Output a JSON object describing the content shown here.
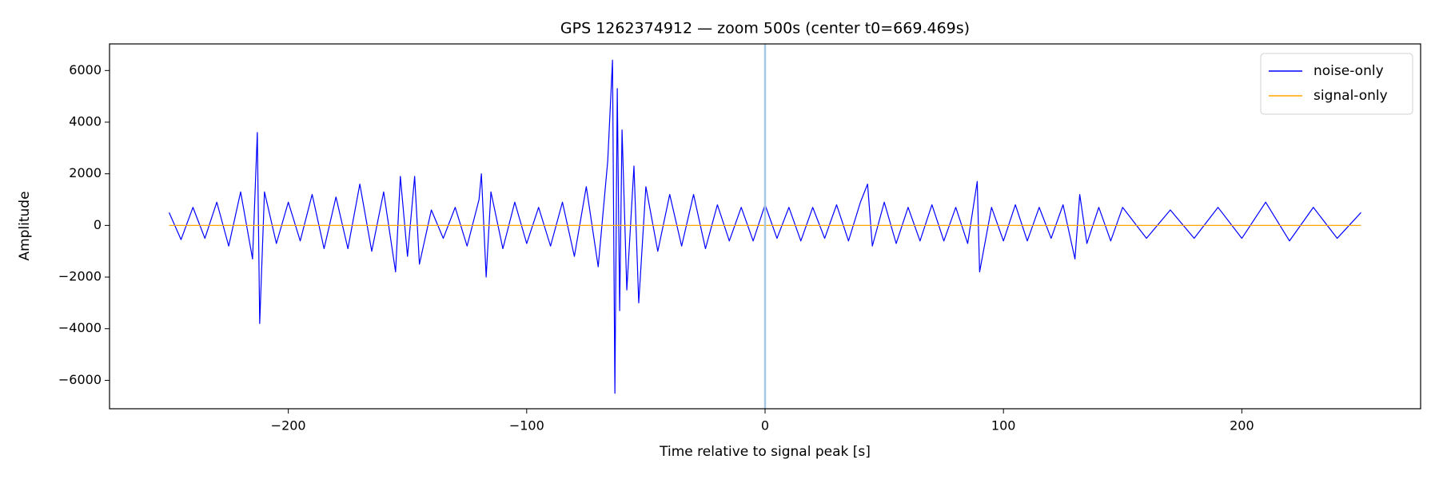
{
  "chart_data": {
    "type": "line",
    "title": "GPS 1262374912 — zoom 500s (center t0=669.469s)",
    "x_label": "Time relative to signal peak [s]",
    "y_label": "Amplitude",
    "xlim": [
      -275,
      275
    ],
    "ylim": [
      -7100,
      7030
    ],
    "xticks": [
      {
        "value": -200,
        "label": "−200"
      },
      {
        "value": -100,
        "label": "−100"
      },
      0,
      100,
      200
    ],
    "yticks": [
      {
        "value": -6000,
        "label": "−6000"
      },
      {
        "value": -4000,
        "label": "−4000"
      },
      {
        "value": -2000,
        "label": "−2000"
      },
      0,
      2000,
      4000,
      6000
    ],
    "vline_x": 0,
    "vline_color": "#a6c8e4",
    "legend": "upper right",
    "series": [
      {
        "name": "noise-only",
        "color": "#0000ff",
        "x": [
          -250,
          -245,
          -240,
          -235,
          -230,
          -225,
          -220,
          -215,
          -213,
          -212,
          -210,
          -205,
          -200,
          -195,
          -190,
          -185,
          -180,
          -175,
          -170,
          -165,
          -160,
          -155,
          -153,
          -150,
          -147,
          -145,
          -140,
          -135,
          -130,
          -125,
          -120,
          -119,
          -117,
          -115,
          -110,
          -105,
          -100,
          -95,
          -90,
          -85,
          -80,
          -75,
          -70,
          -66,
          -64,
          -63,
          -62,
          -61,
          -60,
          -58,
          -55,
          -53,
          -50,
          -45,
          -40,
          -35,
          -30,
          -25,
          -20,
          -15,
          -10,
          -5,
          0,
          5,
          10,
          15,
          20,
          25,
          30,
          35,
          40,
          43,
          45,
          50,
          55,
          60,
          65,
          70,
          75,
          80,
          85,
          89,
          90,
          95,
          100,
          105,
          110,
          115,
          120,
          125,
          130,
          132,
          135,
          140,
          145,
          150,
          160,
          170,
          180,
          190,
          200,
          210,
          220,
          230,
          240,
          250
        ],
        "values": [
          500,
          -550,
          700,
          -500,
          900,
          -800,
          1300,
          -1300,
          3600,
          -3800,
          1300,
          -700,
          900,
          -600,
          1200,
          -900,
          1100,
          -900,
          1600,
          -1000,
          1300,
          -1800,
          1900,
          -1200,
          1900,
          -1500,
          600,
          -500,
          700,
          -800,
          1000,
          2000,
          -2000,
          1300,
          -900,
          900,
          -700,
          700,
          -800,
          900,
          -1200,
          1500,
          -1600,
          2500,
          6400,
          -6500,
          5300,
          -3300,
          3700,
          -2500,
          2300,
          -3000,
          1500,
          -1000,
          1200,
          -800,
          1200,
          -900,
          800,
          -600,
          700,
          -600,
          800,
          -500,
          700,
          -600,
          700,
          -500,
          800,
          -600,
          900,
          1600,
          -800,
          900,
          -700,
          700,
          -600,
          800,
          -600,
          700,
          -700,
          1700,
          -1800,
          700,
          -600,
          800,
          -600,
          700,
          -500,
          800,
          -1300,
          1200,
          -700,
          700,
          -600,
          700,
          -500,
          600,
          -500,
          700,
          -500,
          900,
          -600,
          700,
          -500,
          500
        ]
      },
      {
        "name": "signal-only",
        "color": "#ffa500",
        "x": [
          -250,
          250
        ],
        "values": [
          0,
          0
        ]
      }
    ]
  }
}
